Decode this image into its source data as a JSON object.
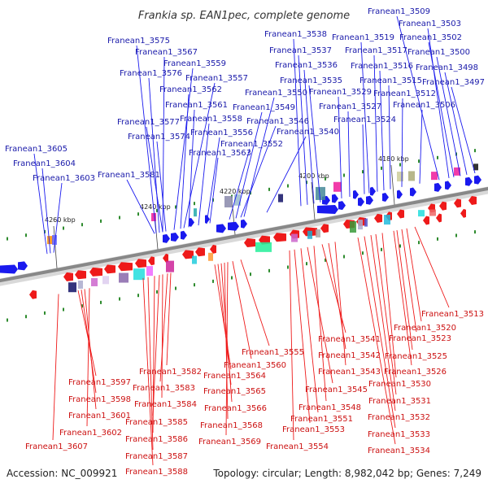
{
  "header": {
    "title": "Frankia sp. EAN1pec, complete genome"
  },
  "footer": {
    "accession": "Accession: NC_009921",
    "summary": "Topology: circular; Length: 8,982,042 bp; Genes: 7,249"
  },
  "colors": {
    "forward_strand": "#1a1aee",
    "reverse_strand": "#ee1a1a",
    "backbone": "#888888",
    "tick_mark": "#2e8b2e"
  },
  "scale_labels": [
    "4260 kbp",
    "4240 kbp",
    "4220 kbp",
    "4200 kbp",
    "4180 kbp"
  ],
  "forward_genes": [
    "Franean1_3605",
    "Franean1_3604",
    "Franean1_3603",
    "Franean1_3581",
    "Franean1_3577",
    "Franean1_3574",
    "Franean1_3576",
    "Franean1_3575",
    "Franean1_3567",
    "Franean1_3559",
    "Franean1_3557",
    "Franean1_3562",
    "Franean1_3561",
    "Franean1_3558",
    "Franean1_3556",
    "Franean1_3563",
    "Franean1_3552",
    "Franean1_3546",
    "Franean1_3549",
    "Franean1_3550",
    "Franean1_3540",
    "Franean1_3538",
    "Franean1_3537",
    "Franean1_3536",
    "Franean1_3535",
    "Franean1_3529",
    "Franean1_3527",
    "Franean1_3524",
    "Franean1_3519",
    "Franean1_3517",
    "Franean1_3516",
    "Franean1_3515",
    "Franean1_3512",
    "Franean1_3506",
    "Franean1_3509",
    "Franean1_3503",
    "Franean1_3502",
    "Franean1_3500",
    "Franean1_3498",
    "Franean1_3497"
  ],
  "reverse_genes": [
    "Franean1_3597",
    "Franean1_3598",
    "Franean1_3601",
    "Franean1_3602",
    "Franean1_3607",
    "Franean1_3582",
    "Franean1_3583",
    "Franean1_3584",
    "Franean1_3585",
    "Franean1_3586",
    "Franean1_3587",
    "Franean1_3588",
    "Franean1_3564",
    "Franean1_3565",
    "Franean1_3566",
    "Franean1_3568",
    "Franean1_3569",
    "Franean1_3560",
    "Franean1_3555",
    "Franean1_3541",
    "Franean1_3542",
    "Franean1_3543",
    "Franean1_3545",
    "Franean1_3548",
    "Franean1_3551",
    "Franean1_3553",
    "Franean1_3554",
    "Franean1_3513",
    "Franean1_3520",
    "Franean1_3523",
    "Franean1_3525",
    "Franean1_3526",
    "Franean1_3530",
    "Franean1_3531",
    "Franean1_3532",
    "Franean1_3533",
    "Franean1_3534"
  ]
}
